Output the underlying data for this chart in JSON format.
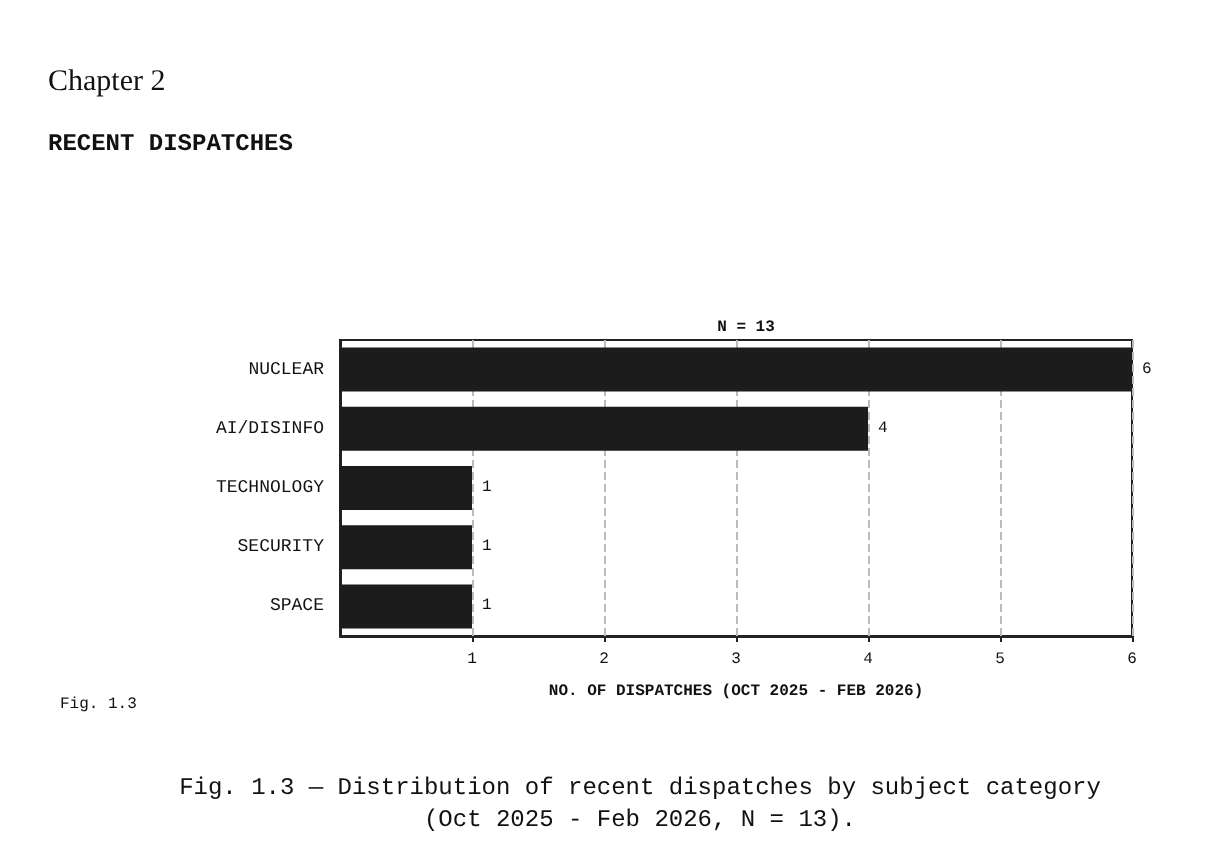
{
  "chart_data": {
    "type": "bar",
    "orientation": "horizontal",
    "title": "N = 13",
    "xlabel": "NO. OF DISPATCHES (OCT 2025 - FEB 2026)",
    "categories": [
      "NUCLEAR",
      "AI/DISINFO",
      "TECHNOLOGY",
      "SECURITY",
      "SPACE"
    ],
    "values": [
      6,
      4,
      1,
      1,
      1
    ],
    "color": "#1c1c1c",
    "xlim": [
      0,
      6
    ],
    "xticks": [
      1,
      2,
      3,
      4,
      5,
      6
    ],
    "grid": "x",
    "data_labels": true,
    "annotations": [
      "Chapter 2",
      "RECENT DISPATCHES",
      "Fig. 1.3",
      "Fig. 1.3 — Distribution of recent dispatches by subject category (Oct 2025 - Feb 2026, N = 13)."
    ]
  }
}
